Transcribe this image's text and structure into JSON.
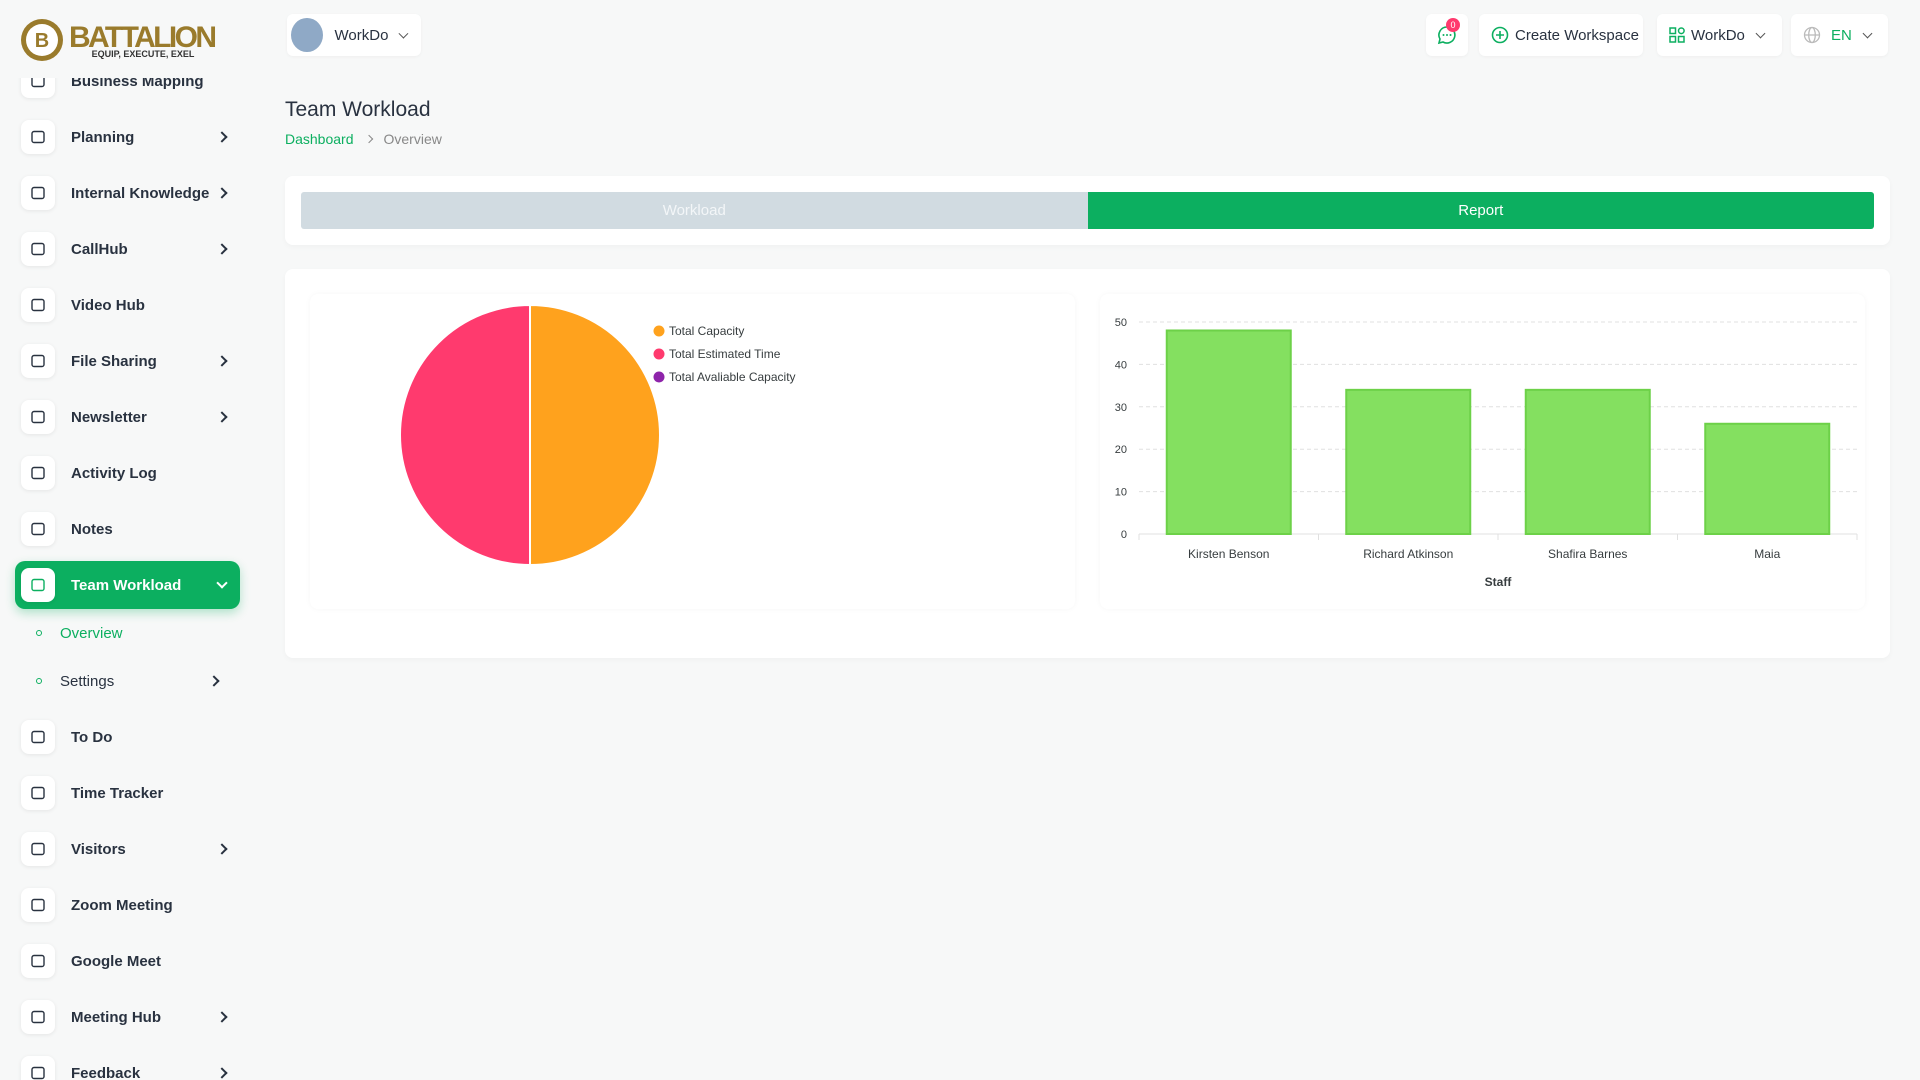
{
  "logo": {
    "emblem": "B",
    "name": "BATTALION",
    "tagline": "EQUIP, EXECUTE, EXEL"
  },
  "header": {
    "workspace": "WorkDo",
    "notifications": "0",
    "create_workspace": "Create Workspace",
    "app": "WorkDo",
    "language": "EN"
  },
  "sidebar": {
    "items": [
      {
        "label": "Business Mapping"
      },
      {
        "label": "Planning",
        "submenu": true
      },
      {
        "label": "Internal Knowledge",
        "submenu": true
      },
      {
        "label": "CallHub",
        "submenu": true
      },
      {
        "label": "Video Hub"
      },
      {
        "label": "File Sharing",
        "submenu": true
      },
      {
        "label": "Newsletter",
        "submenu": true
      },
      {
        "label": "Activity Log"
      },
      {
        "label": "Notes"
      },
      {
        "label": "Team Workload",
        "active": true,
        "children": [
          {
            "label": "Overview",
            "active": true
          },
          {
            "label": "Settings",
            "submenu": true
          }
        ]
      },
      {
        "label": "To Do"
      },
      {
        "label": "Time Tracker"
      },
      {
        "label": "Visitors",
        "submenu": true
      },
      {
        "label": "Zoom Meeting"
      },
      {
        "label": "Google Meet"
      },
      {
        "label": "Meeting Hub",
        "submenu": true
      },
      {
        "label": "Feedback",
        "submenu": true
      }
    ]
  },
  "page": {
    "title": "Team Workload",
    "breadcrumb": [
      "Dashboard",
      "Overview"
    ]
  },
  "tabs": [
    {
      "label": "Workload"
    },
    {
      "label": "Report",
      "active": true
    }
  ],
  "chart_data": [
    {
      "type": "pie",
      "categories": [
        "Total Capacity",
        "Total Estimated Time",
        "Total Avaliable Capacity"
      ],
      "values": [
        50,
        50,
        0
      ],
      "colors": [
        "#ffa21d",
        "#ff3a6e",
        "#8e24aa"
      ]
    },
    {
      "type": "bar",
      "categories": [
        "Kirsten Benson",
        "Richard Atkinson",
        "Shafira Barnes",
        "Maia"
      ],
      "values": [
        48,
        34,
        34,
        26
      ],
      "color": "#84e060",
      "xlabel": "Staff",
      "ylim": [
        0,
        50
      ],
      "yticks": [
        0,
        10,
        20,
        30,
        40,
        50
      ],
      "grid": true
    }
  ]
}
